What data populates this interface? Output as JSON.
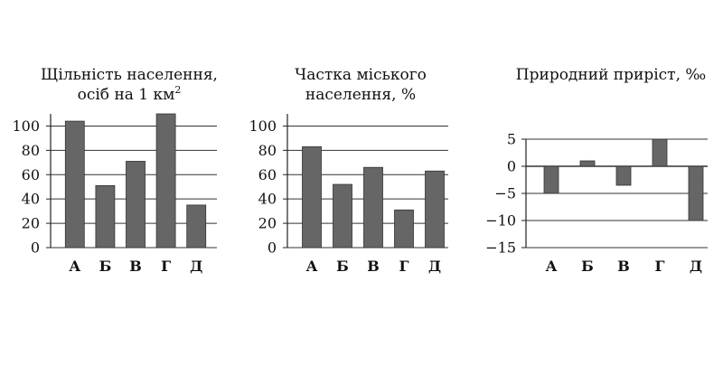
{
  "chart_data": [
    {
      "type": "bar",
      "title_lines": [
        "Щільність населення,",
        "осіб на 1 км"
      ],
      "title_superscript": "2",
      "categories": [
        "А",
        "Б",
        "В",
        "Г",
        "Д"
      ],
      "values": [
        104,
        51,
        71,
        110,
        35
      ],
      "ylim": [
        0,
        110
      ],
      "yticks": [
        0,
        20,
        40,
        60,
        80,
        100
      ],
      "ytick_labels": [
        "0",
        "20",
        "40",
        "60",
        "80",
        "100"
      ],
      "grid": true,
      "bar_color": "#666666"
    },
    {
      "type": "bar",
      "title_lines": [
        "Частка міського",
        "населення, %"
      ],
      "categories": [
        "А",
        "Б",
        "В",
        "Г",
        "Д"
      ],
      "values": [
        83,
        52,
        66,
        31,
        63
      ],
      "ylim": [
        0,
        110
      ],
      "yticks": [
        0,
        20,
        40,
        60,
        80,
        100
      ],
      "ytick_labels": [
        "0",
        "20",
        "40",
        "60",
        "80",
        "100"
      ],
      "grid": true,
      "bar_color": "#666666"
    },
    {
      "type": "bar",
      "title_lines": [
        "Природний приріст, ‰"
      ],
      "categories": [
        "А",
        "Б",
        "В",
        "Г",
        "Д"
      ],
      "values": [
        -5,
        1,
        -3.5,
        5,
        -10
      ],
      "ylim": [
        -15,
        5
      ],
      "yticks": [
        5,
        0,
        -5,
        -10,
        -15
      ],
      "ytick_labels": [
        "5",
        "0",
        "−5",
        "−10",
        "−15"
      ],
      "grid": true,
      "bar_color": "#666666"
    }
  ]
}
